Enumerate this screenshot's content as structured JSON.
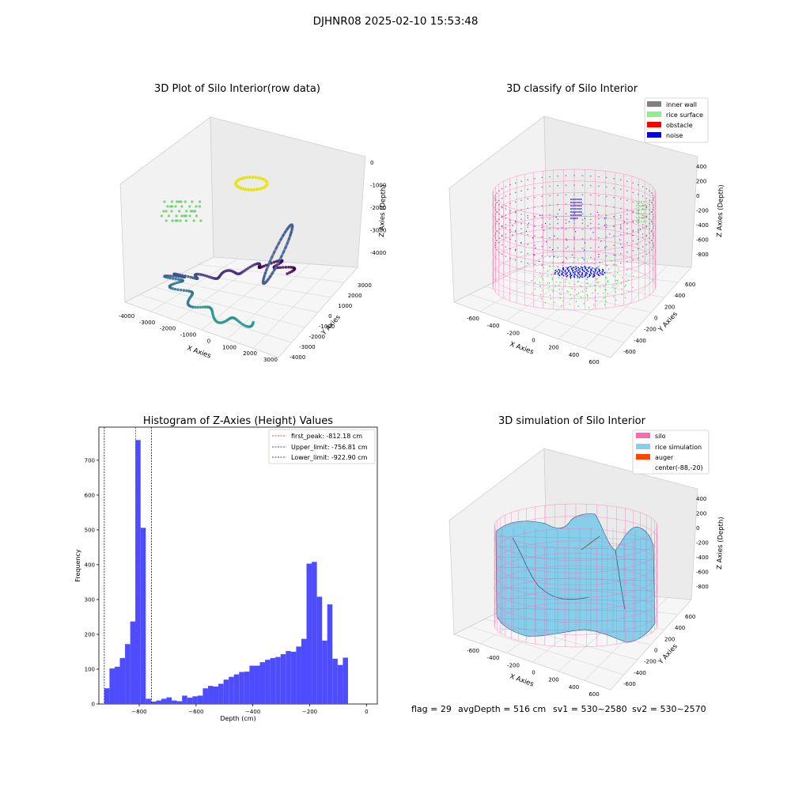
{
  "suptitle": "DJHNR08 2025-02-10 15:53:48",
  "footer": {
    "flag": "flag = 29",
    "avg_depth": "avgDepth = 516 cm",
    "sv1": "sv1 = 530~2580",
    "sv2": "sv2 = 530~2570"
  },
  "colors": {
    "hist_bar": "#4d4dff",
    "first_peak": "#ff0000",
    "limits": "#00008b",
    "inner_wall": "#808080",
    "rice_surface": "#90ee90",
    "obstacle": "#ff0000",
    "noise": "#0000ff",
    "silo": "#ff69b4",
    "rice_simulation": "#87ceeb",
    "auger": "#ff4500"
  },
  "chart_data": [
    {
      "type": "scatter",
      "title": "3D Plot of Silo Interior(row data)",
      "xlabel": "X Axies",
      "ylabel": "Y Axies",
      "zlabel": "Z Axies (Depth)",
      "xticks": [
        "-4000",
        "-3000",
        "-2000",
        "-1000",
        "0",
        "1000",
        "2000",
        "3000"
      ],
      "yticks": [
        "-4000",
        "-3000",
        "-2000",
        "-1000",
        "0",
        "1000",
        "2000",
        "3000"
      ],
      "zticks": [
        "0",
        "-1000",
        "-2000",
        "-3000",
        "-4000"
      ],
      "xlim": [
        -4300,
        3500
      ],
      "ylim": [
        -4300,
        3500
      ],
      "zlim": [
        -4300,
        100
      ]
    },
    {
      "type": "scatter",
      "title": "3D classify of Silo Interior",
      "xlabel": "X Axies",
      "ylabel": "Y Axies",
      "zlabel": "Z Axies (Depth)",
      "xticks": [
        "-600",
        "-400",
        "-200",
        "0",
        "200",
        "400",
        "600"
      ],
      "yticks": [
        "-600",
        "-400",
        "-200",
        "0",
        "200",
        "400",
        "600"
      ],
      "zticks": [
        "400",
        "200",
        "0",
        "-200",
        "-400",
        "-600",
        "-800"
      ],
      "xlim": [
        -700,
        650
      ],
      "ylim": [
        -700,
        650
      ],
      "zlim": [
        -950,
        450
      ],
      "legend": [
        "inner wall",
        "rice surface",
        "obstacle",
        "noise"
      ],
      "legend_position": "top-right"
    },
    {
      "type": "bar",
      "title": "Histogram of Z-Axies (Height) Values",
      "xlabel": "Depth (cm)",
      "ylabel": "Frequency",
      "xticks": [
        -800,
        -600,
        -400,
        -200,
        0
      ],
      "yticks": [
        0,
        100,
        200,
        300,
        400,
        500,
        600,
        700
      ],
      "xlim": [
        -942,
        38
      ],
      "ylim": [
        0,
        795
      ],
      "bin_start": -922.9,
      "bin_width": 18.25,
      "values": [
        45,
        102,
        107,
        132,
        172,
        237,
        758,
        506,
        15,
        7,
        10,
        15,
        19,
        10,
        8,
        24,
        18,
        22,
        24,
        45,
        52,
        50,
        58,
        70,
        78,
        85,
        92,
        93,
        110,
        110,
        120,
        127,
        132,
        135,
        143,
        152,
        150,
        165,
        187,
        403,
        408,
        308,
        182,
        286,
        130,
        112,
        133
      ],
      "first_peak": -812.18,
      "upper_limit": -756.81,
      "lower_limit": -922.9,
      "legend": [
        "first_peak: -812.18 cm",
        "Upper_limit: -756.81 cm",
        "Lower_limit: -922.90 cm"
      ],
      "legend_position": "top-right"
    },
    {
      "type": "area",
      "title": "3D simulation of Silo Interior",
      "xlabel": "X Axies",
      "ylabel": "Y Axies",
      "zlabel": "Z Axies (Depth)",
      "xticks": [
        "-600",
        "-400",
        "-200",
        "0",
        "200",
        "400",
        "600"
      ],
      "yticks": [
        "-600",
        "-400",
        "-200",
        "0",
        "200",
        "400",
        "600"
      ],
      "zticks": [
        "400",
        "200",
        "0",
        "-200",
        "-400",
        "-600",
        "-800"
      ],
      "xlim": [
        -700,
        650
      ],
      "ylim": [
        -700,
        650
      ],
      "zlim": [
        -950,
        450
      ],
      "legend": [
        "silo",
        "rice simulation",
        "auger",
        "center(-88,-20)"
      ],
      "legend_position": "top-right"
    }
  ]
}
